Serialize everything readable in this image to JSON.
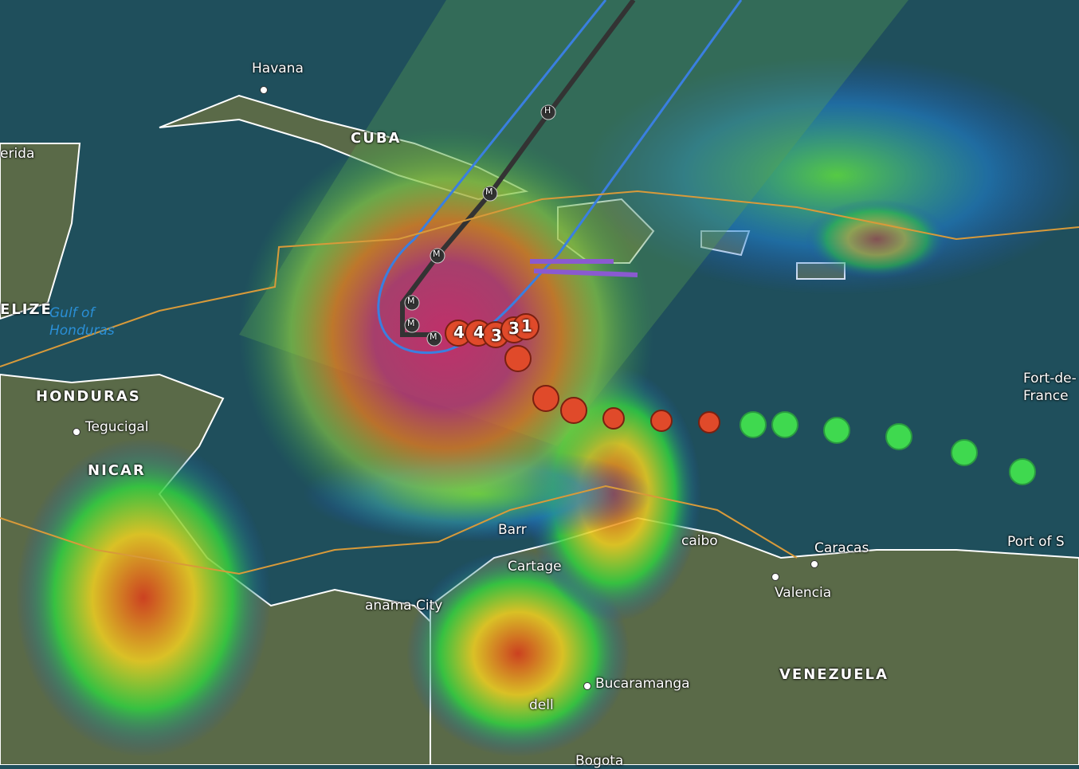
{
  "map": {
    "labels": {
      "havana": "Havana",
      "cuba": "CUBA",
      "merida": "erida",
      "belize": "ELIZE",
      "gulf": "Gulf of Honduras",
      "honduras": "HONDURAS",
      "tegucigalpa": "Tegucigal",
      "nicaragua": "NICAR",
      "barranquilla": "Barr",
      "cartagena": "Cartage",
      "panama": "anama City",
      "maracaibo": "caibo",
      "caracas": "Caracas",
      "valencia": "Valencia",
      "port_of_spain": "Port of S",
      "fort_de_france": "Fort-de-France",
      "bucaramanga": "Bucaramanga",
      "medellin": "dell",
      "bogota": "Bogota",
      "venezuela": "VENEZUELA"
    },
    "storm": {
      "forecast_points": [
        "M",
        "M",
        "M",
        "M",
        "M",
        "H"
      ],
      "intensity_markers": [
        "4",
        "4",
        "3",
        "3",
        "1"
      ],
      "track_color": "#333333",
      "cone_color": "#3a7fe0"
    },
    "colors": {
      "ocean": "#1f4f5c",
      "land": "#5a6a48",
      "radar_light": "#2fd94a",
      "radar_heavy": "#e03a1a",
      "tropical_depression": "#3fd94f"
    }
  }
}
